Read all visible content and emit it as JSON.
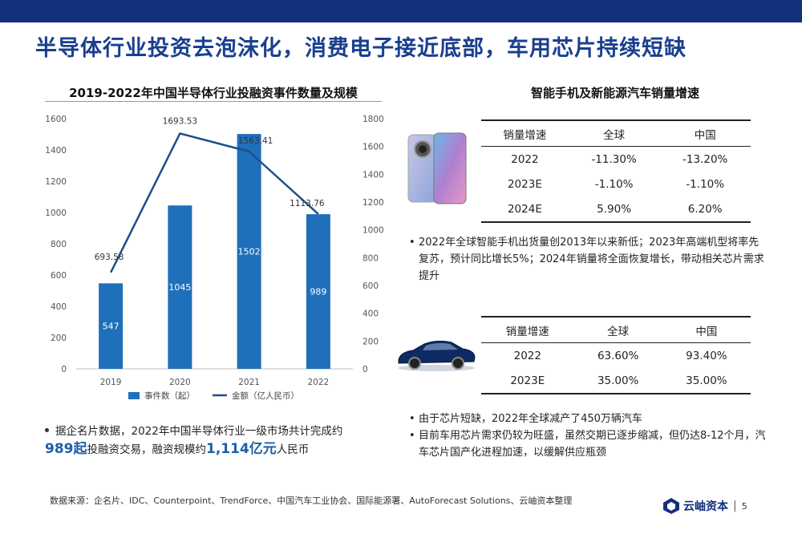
{
  "slide": {
    "title": "半导体行业投资去泡沫化，消费电子接近底部，车用芯片持续短缺",
    "page_number": "5",
    "logo_text": "云岫资本"
  },
  "left": {
    "chart_title": "2019-2022年中国半导体行业投融资事件数量及规模",
    "bullet_prefix": "据企名片数据，2022年中国半导体行业一级市场共计完成约",
    "bullet_value1": "989起",
    "bullet_mid": "投融资交易，融资规模约",
    "bullet_value2": "1,114亿元",
    "bullet_suffix": "人民币"
  },
  "chart_data": {
    "type": "bar+line",
    "categories": [
      "2019",
      "2020",
      "2021",
      "2022"
    ],
    "series": [
      {
        "name": "事件数（起）",
        "type": "bar",
        "axis": "left",
        "color": "#1f6fba",
        "values": [
          547,
          1045,
          1502,
          989
        ],
        "labels": [
          "547",
          "1045",
          "1502",
          "989"
        ]
      },
      {
        "name": "金额（亿人民币）",
        "type": "line",
        "axis": "right",
        "color": "#1f4e8c",
        "values": [
          693.58,
          1693.53,
          1563.41,
          1113.76
        ],
        "labels": [
          "693.58",
          "1693.53",
          "1563.41",
          "1113.76"
        ]
      }
    ],
    "y_left": {
      "min": 0,
      "max": 1600,
      "ticks": [
        "0",
        "200",
        "400",
        "600",
        "800",
        "1000",
        "1200",
        "1400",
        "1600"
      ]
    },
    "y_right": {
      "min": 0,
      "max": 1800,
      "ticks": [
        "0",
        "200",
        "400",
        "600",
        "800",
        "1000",
        "1200",
        "1400",
        "1600",
        "1800"
      ]
    },
    "legend_position": "bottom",
    "grid": false
  },
  "right": {
    "title": "智能手机及新能源汽车销量增速",
    "table1": {
      "headers": [
        "销量增速",
        "全球",
        "中国"
      ],
      "rows": [
        [
          "2022",
          "-11.30%",
          "-13.20%"
        ],
        [
          "2023E",
          "-1.10%",
          "-1.10%"
        ],
        [
          "2024E",
          "5.90%",
          "6.20%"
        ]
      ]
    },
    "note1": [
      "2022年全球智能手机出货量创2013年以来新低；2023年高端机型将率先复苏，预计同比增长5%；2024年销量将全面恢复增长，带动相关芯片需求提升"
    ],
    "table2": {
      "headers": [
        "销量增速",
        "全球",
        "中国"
      ],
      "rows": [
        [
          "2022",
          "63.60%",
          "93.40%"
        ],
        [
          "2023E",
          "35.00%",
          "35.00%"
        ]
      ]
    },
    "note2": [
      "由于芯片短缺，2022年全球减产了450万辆汽车",
      "目前车用芯片需求仍较为旺盛，虽然交期已逐步缩减，但仍达8-12个月，汽车芯片国产化进程加速，以缓解供应瓶颈"
    ]
  },
  "source": "数据来源：企名片、IDC、Counterpoint、TrendForce、中国汽车工业协会、国际能源署、AutoForecast Solutions、云岫资本整理"
}
